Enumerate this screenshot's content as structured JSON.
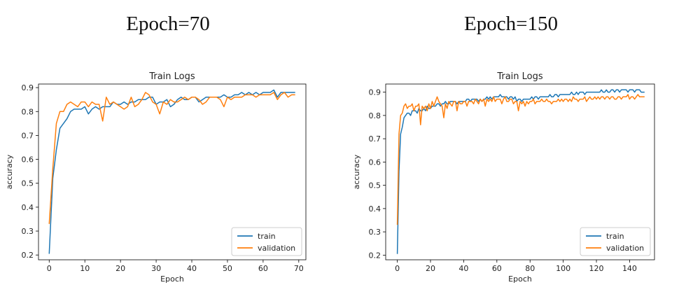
{
  "captions": [
    "Epoch=70",
    "Epoch=150"
  ],
  "colors": {
    "train": "#1f77b4",
    "validation": "#ff7f0e"
  },
  "chart_data": [
    {
      "type": "line",
      "title": "Train Logs",
      "xlabel": "Epoch",
      "ylabel": "accuracy",
      "xlim": [
        -3,
        72
      ],
      "ylim": [
        0.18,
        0.915
      ],
      "xticks": [
        0,
        10,
        20,
        30,
        40,
        50,
        60,
        70
      ],
      "yticks": [
        0.2,
        0.3,
        0.4,
        0.5,
        0.6,
        0.7,
        0.8,
        0.9
      ],
      "legend": "lower-right",
      "x": [
        0,
        1,
        2,
        3,
        4,
        5,
        6,
        7,
        8,
        9,
        10,
        11,
        12,
        13,
        14,
        15,
        16,
        17,
        18,
        19,
        20,
        21,
        22,
        23,
        24,
        25,
        26,
        27,
        28,
        29,
        30,
        31,
        32,
        33,
        34,
        35,
        36,
        37,
        38,
        39,
        40,
        41,
        42,
        43,
        44,
        45,
        46,
        47,
        48,
        49,
        50,
        51,
        52,
        53,
        54,
        55,
        56,
        57,
        58,
        59,
        60,
        61,
        62,
        63,
        64,
        65,
        66,
        67,
        68,
        69
      ],
      "series": [
        {
          "name": "train",
          "values": [
            0.205,
            0.52,
            0.64,
            0.73,
            0.75,
            0.77,
            0.8,
            0.81,
            0.81,
            0.81,
            0.82,
            0.79,
            0.81,
            0.82,
            0.81,
            0.82,
            0.82,
            0.82,
            0.84,
            0.83,
            0.83,
            0.84,
            0.83,
            0.84,
            0.84,
            0.85,
            0.85,
            0.85,
            0.86,
            0.86,
            0.83,
            0.84,
            0.84,
            0.85,
            0.82,
            0.83,
            0.85,
            0.86,
            0.85,
            0.85,
            0.86,
            0.86,
            0.84,
            0.85,
            0.86,
            0.86,
            0.86,
            0.86,
            0.86,
            0.87,
            0.86,
            0.86,
            0.87,
            0.87,
            0.88,
            0.87,
            0.88,
            0.87,
            0.88,
            0.87,
            0.88,
            0.88,
            0.88,
            0.89,
            0.86,
            0.88,
            0.88,
            0.88,
            0.88,
            0.88
          ]
        },
        {
          "name": "validation",
          "values": [
            0.33,
            0.56,
            0.75,
            0.8,
            0.8,
            0.83,
            0.84,
            0.83,
            0.82,
            0.84,
            0.84,
            0.82,
            0.84,
            0.83,
            0.83,
            0.76,
            0.86,
            0.83,
            0.84,
            0.83,
            0.82,
            0.81,
            0.82,
            0.86,
            0.82,
            0.83,
            0.85,
            0.88,
            0.87,
            0.84,
            0.83,
            0.79,
            0.84,
            0.83,
            0.85,
            0.84,
            0.84,
            0.85,
            0.86,
            0.85,
            0.86,
            0.86,
            0.85,
            0.83,
            0.84,
            0.86,
            0.86,
            0.86,
            0.85,
            0.82,
            0.86,
            0.85,
            0.86,
            0.86,
            0.86,
            0.87,
            0.87,
            0.87,
            0.86,
            0.87,
            0.87,
            0.87,
            0.87,
            0.88,
            0.85,
            0.87,
            0.88,
            0.86,
            0.87,
            0.87
          ]
        }
      ]
    },
    {
      "type": "line",
      "title": "Train Logs",
      "xlabel": "Epoch",
      "ylabel": "accuracy",
      "xlim": [
        -7,
        155
      ],
      "ylim": [
        0.18,
        0.935
      ],
      "xticks": [
        0,
        20,
        40,
        60,
        80,
        100,
        120,
        140
      ],
      "yticks": [
        0.2,
        0.3,
        0.4,
        0.5,
        0.6,
        0.7,
        0.8,
        0.9
      ],
      "legend": "lower-right",
      "x_start": 0,
      "series": [
        {
          "name": "train",
          "values": [
            0.205,
            0.56,
            0.72,
            0.75,
            0.79,
            0.8,
            0.81,
            0.81,
            0.8,
            0.82,
            0.82,
            0.82,
            0.81,
            0.83,
            0.82,
            0.82,
            0.83,
            0.82,
            0.84,
            0.83,
            0.83,
            0.84,
            0.84,
            0.84,
            0.85,
            0.85,
            0.84,
            0.85,
            0.85,
            0.86,
            0.85,
            0.85,
            0.86,
            0.86,
            0.86,
            0.86,
            0.85,
            0.86,
            0.86,
            0.86,
            0.86,
            0.86,
            0.87,
            0.87,
            0.86,
            0.87,
            0.87,
            0.87,
            0.87,
            0.86,
            0.87,
            0.86,
            0.87,
            0.87,
            0.88,
            0.87,
            0.88,
            0.87,
            0.88,
            0.88,
            0.88,
            0.88,
            0.89,
            0.88,
            0.88,
            0.88,
            0.88,
            0.87,
            0.88,
            0.88,
            0.87,
            0.88,
            0.86,
            0.87,
            0.87,
            0.86,
            0.87,
            0.87,
            0.87,
            0.87,
            0.87,
            0.88,
            0.87,
            0.88,
            0.88,
            0.87,
            0.88,
            0.88,
            0.88,
            0.88,
            0.88,
            0.88,
            0.89,
            0.88,
            0.88,
            0.89,
            0.89,
            0.88,
            0.89,
            0.89,
            0.89,
            0.89,
            0.89,
            0.89,
            0.89,
            0.9,
            0.89,
            0.89,
            0.9,
            0.89,
            0.9,
            0.9,
            0.9,
            0.89,
            0.9,
            0.9,
            0.9,
            0.9,
            0.9,
            0.9,
            0.9,
            0.9,
            0.9,
            0.91,
            0.9,
            0.9,
            0.91,
            0.9,
            0.9,
            0.91,
            0.91,
            0.9,
            0.91,
            0.91,
            0.9,
            0.91,
            0.91,
            0.91,
            0.91,
            0.9,
            0.91,
            0.91,
            0.91,
            0.9,
            0.91,
            0.91,
            0.91,
            0.9,
            0.9,
            0.9
          ]
        },
        {
          "name": "validation",
          "values": [
            0.33,
            0.72,
            0.8,
            0.81,
            0.84,
            0.85,
            0.83,
            0.84,
            0.84,
            0.85,
            0.82,
            0.84,
            0.84,
            0.85,
            0.76,
            0.84,
            0.83,
            0.84,
            0.82,
            0.85,
            0.83,
            0.86,
            0.84,
            0.86,
            0.88,
            0.86,
            0.85,
            0.84,
            0.79,
            0.85,
            0.83,
            0.86,
            0.85,
            0.84,
            0.86,
            0.86,
            0.82,
            0.86,
            0.85,
            0.85,
            0.86,
            0.86,
            0.84,
            0.86,
            0.86,
            0.86,
            0.85,
            0.87,
            0.86,
            0.85,
            0.87,
            0.86,
            0.87,
            0.84,
            0.87,
            0.86,
            0.87,
            0.86,
            0.88,
            0.86,
            0.87,
            0.87,
            0.87,
            0.85,
            0.87,
            0.88,
            0.86,
            0.86,
            0.87,
            0.87,
            0.85,
            0.86,
            0.86,
            0.82,
            0.86,
            0.85,
            0.86,
            0.84,
            0.86,
            0.85,
            0.86,
            0.86,
            0.87,
            0.85,
            0.86,
            0.86,
            0.86,
            0.87,
            0.86,
            0.86,
            0.87,
            0.86,
            0.86,
            0.85,
            0.86,
            0.86,
            0.86,
            0.87,
            0.86,
            0.87,
            0.86,
            0.87,
            0.87,
            0.86,
            0.87,
            0.86,
            0.88,
            0.87,
            0.87,
            0.86,
            0.87,
            0.87,
            0.87,
            0.88,
            0.86,
            0.87,
            0.88,
            0.87,
            0.87,
            0.88,
            0.87,
            0.88,
            0.87,
            0.88,
            0.88,
            0.87,
            0.88,
            0.88,
            0.87,
            0.88,
            0.88,
            0.87,
            0.87,
            0.88,
            0.88,
            0.87,
            0.88,
            0.88,
            0.88,
            0.89,
            0.87,
            0.88,
            0.88,
            0.87,
            0.88,
            0.89,
            0.88,
            0.88,
            0.88,
            0.88
          ]
        }
      ]
    }
  ]
}
